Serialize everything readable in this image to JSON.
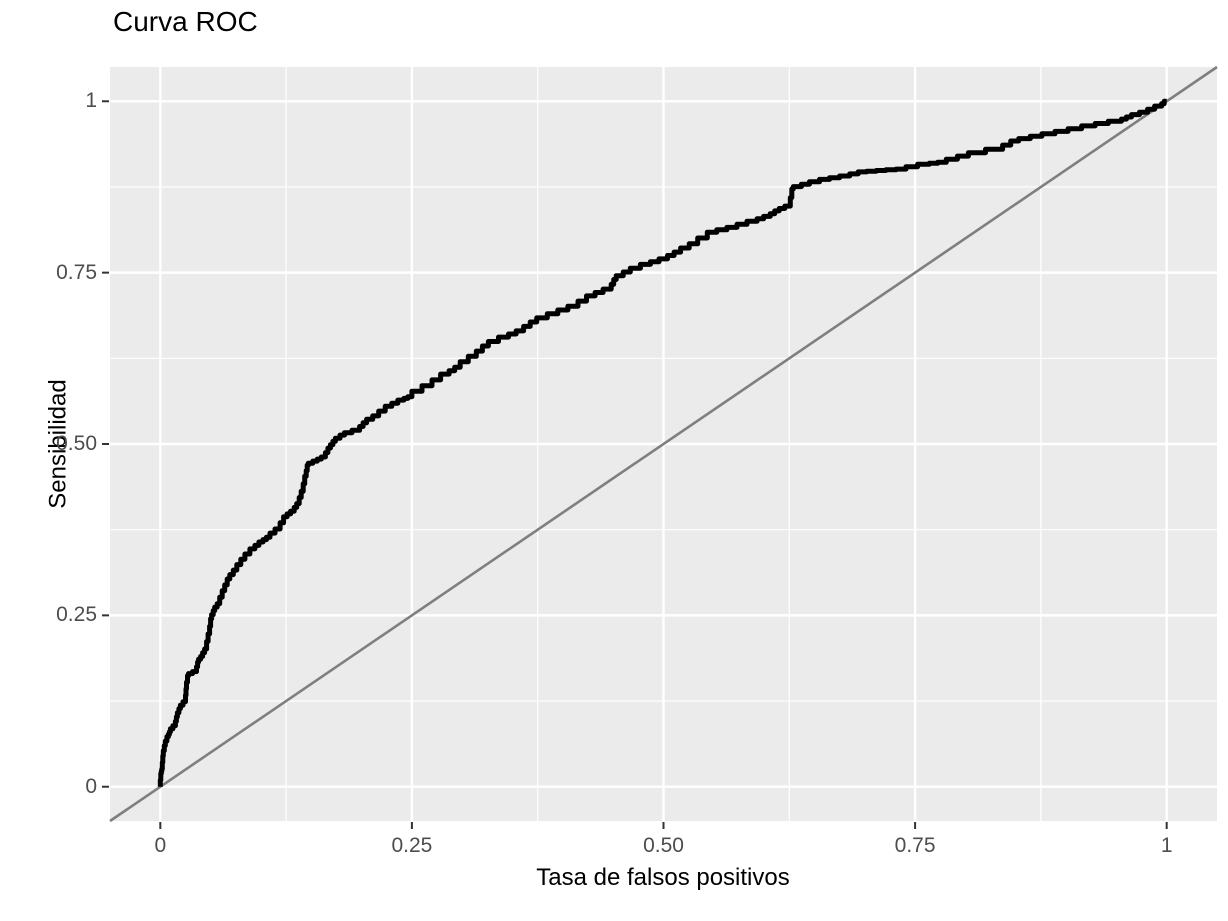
{
  "title": "Curva ROC",
  "axes": {
    "x": {
      "label": "Tasa de falsos positivos",
      "tick_values": [
        0,
        0.25,
        0.5,
        0.75,
        1
      ],
      "tick_labels": [
        "0",
        "0.25",
        "0.50",
        "0.75",
        "1"
      ],
      "minor_tick_values": [
        0.125,
        0.375,
        0.625,
        0.875
      ]
    },
    "y": {
      "label": "Sensibilidad",
      "tick_values": [
        0,
        0.25,
        0.5,
        0.75,
        1
      ],
      "tick_labels": [
        "0",
        "0.25",
        "0.50",
        "0.75",
        "1"
      ],
      "minor_tick_values": [
        0.125,
        0.375,
        0.625,
        0.875
      ]
    }
  },
  "colors": {
    "panel_background": "#EBEBEB",
    "grid": "#FFFFFF",
    "roc_curve": "#000000",
    "reference_line": "#7F7F7F",
    "tick_text": "#4D4D4D",
    "tick_mark": "#333333",
    "title_text": "#000000"
  },
  "chart_data": {
    "type": "line",
    "title": "Curva ROC",
    "xlabel": "Tasa de falsos positivos",
    "ylabel": "Sensibilidad",
    "xlim": [
      0,
      1
    ],
    "ylim": [
      0,
      1
    ],
    "grid": true,
    "legend": "none",
    "series": [
      {
        "name": "roc-curve",
        "style": "step",
        "color": "#000000",
        "points": [
          [
            0,
            0
          ],
          [
            0.001,
            0.019
          ],
          [
            0.002,
            0.026
          ],
          [
            0.003,
            0.045
          ],
          [
            0.005,
            0.06
          ],
          [
            0.008,
            0.073
          ],
          [
            0.01,
            0.08
          ],
          [
            0.015,
            0.089
          ],
          [
            0.017,
            0.102
          ],
          [
            0.02,
            0.114
          ],
          [
            0.025,
            0.124
          ],
          [
            0.026,
            0.143
          ],
          [
            0.028,
            0.162
          ],
          [
            0.036,
            0.168
          ],
          [
            0.038,
            0.182
          ],
          [
            0.042,
            0.19
          ],
          [
            0.046,
            0.201
          ],
          [
            0.049,
            0.223
          ],
          [
            0.051,
            0.245
          ],
          [
            0.054,
            0.257
          ],
          [
            0.059,
            0.267
          ],
          [
            0.064,
            0.286
          ],
          [
            0.069,
            0.303
          ],
          [
            0.076,
            0.316
          ],
          [
            0.084,
            0.332
          ],
          [
            0.094,
            0.347
          ],
          [
            0.102,
            0.357
          ],
          [
            0.109,
            0.364
          ],
          [
            0.119,
            0.376
          ],
          [
            0.126,
            0.394
          ],
          [
            0.133,
            0.402
          ],
          [
            0.138,
            0.413
          ],
          [
            0.142,
            0.431
          ],
          [
            0.145,
            0.453
          ],
          [
            0.147,
            0.469
          ],
          [
            0.156,
            0.475
          ],
          [
            0.164,
            0.481
          ],
          [
            0.169,
            0.494
          ],
          [
            0.174,
            0.504
          ],
          [
            0.183,
            0.513
          ],
          [
            0.198,
            0.52
          ],
          [
            0.205,
            0.531
          ],
          [
            0.217,
            0.541
          ],
          [
            0.23,
            0.555
          ],
          [
            0.242,
            0.564
          ],
          [
            0.25,
            0.569
          ],
          [
            0.27,
            0.585
          ],
          [
            0.287,
            0.602
          ],
          [
            0.298,
            0.612
          ],
          [
            0.314,
            0.628
          ],
          [
            0.326,
            0.643
          ],
          [
            0.346,
            0.656
          ],
          [
            0.361,
            0.665
          ],
          [
            0.374,
            0.678
          ],
          [
            0.395,
            0.69
          ],
          [
            0.415,
            0.701
          ],
          [
            0.432,
            0.716
          ],
          [
            0.448,
            0.726
          ],
          [
            0.453,
            0.74
          ],
          [
            0.467,
            0.751
          ],
          [
            0.487,
            0.762
          ],
          [
            0.504,
            0.77
          ],
          [
            0.517,
            0.78
          ],
          [
            0.534,
            0.792
          ],
          [
            0.553,
            0.809
          ],
          [
            0.573,
            0.816
          ],
          [
            0.593,
            0.825
          ],
          [
            0.606,
            0.832
          ],
          [
            0.615,
            0.84
          ],
          [
            0.626,
            0.847
          ],
          [
            0.629,
            0.872
          ],
          [
            0.645,
            0.879
          ],
          [
            0.665,
            0.886
          ],
          [
            0.685,
            0.891
          ],
          [
            0.702,
            0.897
          ],
          [
            0.721,
            0.899
          ],
          [
            0.741,
            0.901
          ],
          [
            0.764,
            0.908
          ],
          [
            0.781,
            0.911
          ],
          [
            0.803,
            0.92
          ],
          [
            0.837,
            0.93
          ],
          [
            0.853,
            0.942
          ],
          [
            0.876,
            0.949
          ],
          [
            0.902,
            0.956
          ],
          [
            0.929,
            0.964
          ],
          [
            0.955,
            0.971
          ],
          [
            0.965,
            0.977
          ],
          [
            0.981,
            0.984
          ],
          [
            0.995,
            0.993
          ],
          [
            1,
            1
          ]
        ]
      },
      {
        "name": "reference-diagonal",
        "style": "line",
        "color": "#7F7F7F",
        "points": [
          [
            0,
            0
          ],
          [
            1,
            1
          ]
        ],
        "extends_across_panel": true
      }
    ]
  }
}
